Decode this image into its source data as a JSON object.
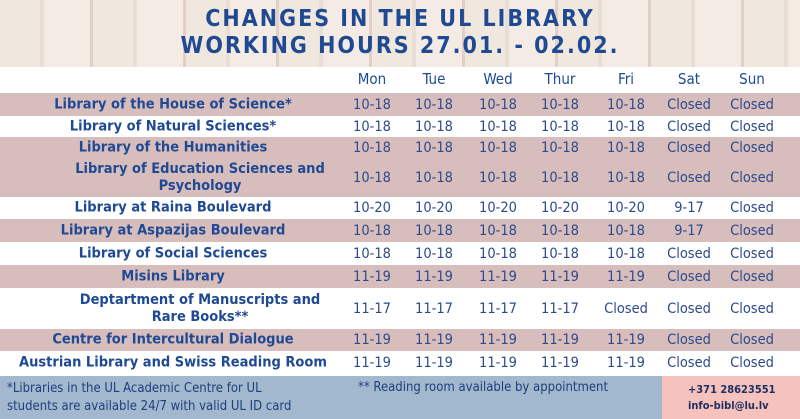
{
  "title": {
    "line1": "CHANGES IN THE UL LIBRARY",
    "line2": "WORKING HOURS 27.01. - 02.02."
  },
  "days": [
    "Mon",
    "Tue",
    "Wed",
    "Thur",
    "Fri",
    "Sat",
    "Sun"
  ],
  "rows": [
    {
      "name": "Library of the House of Science*",
      "hours": [
        "10-18",
        "10-18",
        "10-18",
        "10-18",
        "10-18",
        "Closed",
        "Closed"
      ]
    },
    {
      "name": "Library of Natural Sciences*",
      "hours": [
        "10-18",
        "10-18",
        "10-18",
        "10-18",
        "10-18",
        "Closed",
        "Closed"
      ]
    },
    {
      "name": "Library of the Humanities",
      "hours": [
        "10-18",
        "10-18",
        "10-18",
        "10-18",
        "10-18",
        "Closed",
        "Closed"
      ]
    },
    {
      "name": "Library of Education Sciences and Psychology",
      "hours": [
        "10-18",
        "10-18",
        "10-18",
        "10-18",
        "10-18",
        "Closed",
        "Closed"
      ]
    },
    {
      "name": "Library at Raina Boulevard",
      "hours": [
        "10-20",
        "10-20",
        "10-20",
        "10-20",
        "10-20",
        "9-17",
        "Closed"
      ]
    },
    {
      "name": "Library at Aspazijas Boulevard",
      "hours": [
        "10-18",
        "10-18",
        "10-18",
        "10-18",
        "10-18",
        "9-17",
        "Closed"
      ]
    },
    {
      "name": "Library of Social Sciences",
      "hours": [
        "10-18",
        "10-18",
        "10-18",
        "10-18",
        "10-18",
        "Closed",
        "Closed"
      ]
    },
    {
      "name": "Misins Library",
      "hours": [
        "11-19",
        "11-19",
        "11-19",
        "11-19",
        "11-19",
        "Closed",
        "Closed"
      ]
    },
    {
      "name": "Deptartment of Manuscripts and Rare Books**",
      "hours": [
        "11-17",
        "11-17",
        "11-17",
        "11-17",
        "Closed",
        "Closed",
        "Closed"
      ]
    },
    {
      "name": "Centre for Intercultural Dialogue",
      "hours": [
        "11-19",
        "11-19",
        "11-19",
        "11-19",
        "11-19",
        "Closed",
        "Closed"
      ]
    },
    {
      "name": "Austrian Library and Swiss Reading Room",
      "hours": [
        "11-19",
        "11-19",
        "11-19",
        "11-19",
        "11-19",
        "Closed",
        "Closed"
      ]
    }
  ],
  "footer": {
    "note1_line1": "*Libraries in the UL Academic Centre for UL",
    "note1_line2": "students are available 24/7 with valid UL ID card",
    "note2": "** Reading room available by appointment",
    "phone": "+371 28623551",
    "email": "info-bibl@lu.lv"
  }
}
